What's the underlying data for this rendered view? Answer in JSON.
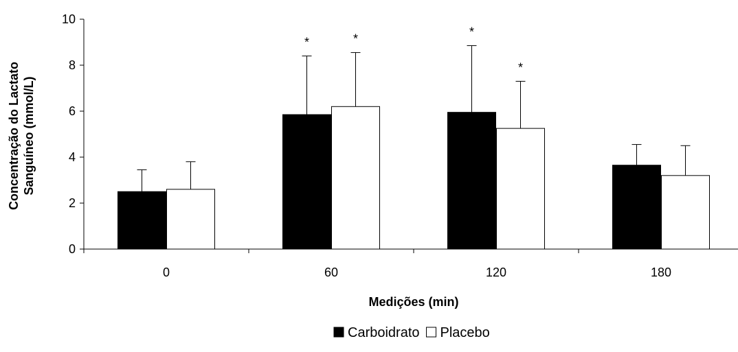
{
  "chart_data": {
    "type": "bar",
    "categories": [
      "0",
      "60",
      "120",
      "180"
    ],
    "series": [
      {
        "name": "Carboidrato",
        "color": "#000000",
        "values": [
          2.5,
          5.85,
          5.95,
          3.65
        ],
        "errors": [
          0.95,
          2.55,
          2.9,
          0.9
        ],
        "significance": [
          "",
          "*",
          "*",
          ""
        ]
      },
      {
        "name": "Placebo",
        "color": "#ffffff",
        "values": [
          2.6,
          6.2,
          5.25,
          3.2
        ],
        "errors": [
          1.2,
          2.35,
          2.05,
          1.3
        ],
        "significance": [
          "",
          "*",
          "*",
          ""
        ]
      }
    ],
    "xlabel": "Medições (min)",
    "ylabel_lines": [
      "Concentração do Lactato",
      "Sanguíneo (mmol/L)"
    ],
    "ylim": [
      0,
      10
    ],
    "yticks": [
      0,
      2,
      4,
      6,
      8,
      10
    ],
    "grid": false,
    "legend_position": "bottom-center"
  }
}
